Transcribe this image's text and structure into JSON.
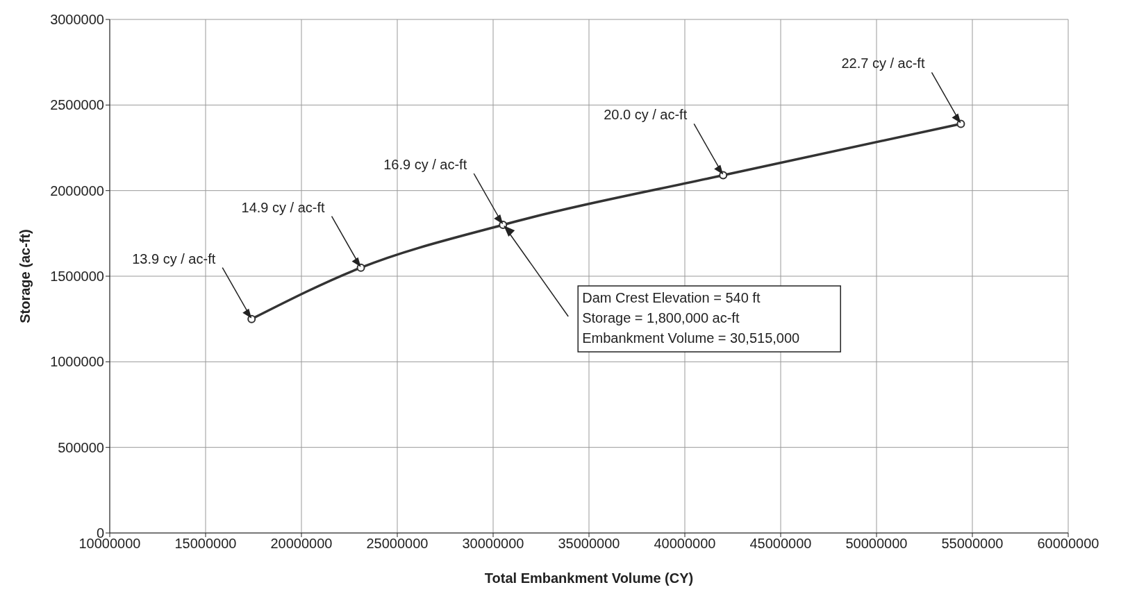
{
  "chart_data": {
    "type": "line",
    "xlabel": "Total Embankment Volume (CY)",
    "ylabel": "Storage (ac-ft)",
    "x": [
      17400000,
      23100000,
      30515000,
      42000000,
      54400000
    ],
    "series": [
      {
        "color": "#333333",
        "values": [
          1250000,
          1550000,
          1800000,
          2090000,
          2390000
        ]
      }
    ],
    "xlim": [
      10000000,
      60000000
    ],
    "xticks": [
      10000000,
      15000000,
      20000000,
      25000000,
      30000000,
      35000000,
      40000000,
      45000000,
      50000000,
      55000000,
      60000000
    ],
    "ylim": [
      0,
      3000000
    ],
    "yticks": [
      0,
      500000,
      1000000,
      1500000,
      2000000,
      2500000,
      3000000
    ],
    "grid": true,
    "marker": "circle",
    "line_style": "solid",
    "annotations": [
      {
        "text": "13.9 cy / ac-ft",
        "x": 17400000,
        "y": 1250000
      },
      {
        "text": "14.9 cy / ac-ft",
        "x": 23100000,
        "y": 1550000
      },
      {
        "text": "16.9 cy / ac-ft",
        "x": 30515000,
        "y": 1800000
      },
      {
        "text": "20.0 cy / ac-ft",
        "x": 42000000,
        "y": 2090000
      },
      {
        "text": "22.7 cy / ac-ft",
        "x": 54400000,
        "y": 2390000
      },
      {
        "text": "Dam Crest Elevation = 540 ft\nStorage = 1,800,000 ac-ft\nEmbankment Volume = 30,515,000",
        "x": 30515000,
        "y": 1800000
      }
    ]
  }
}
